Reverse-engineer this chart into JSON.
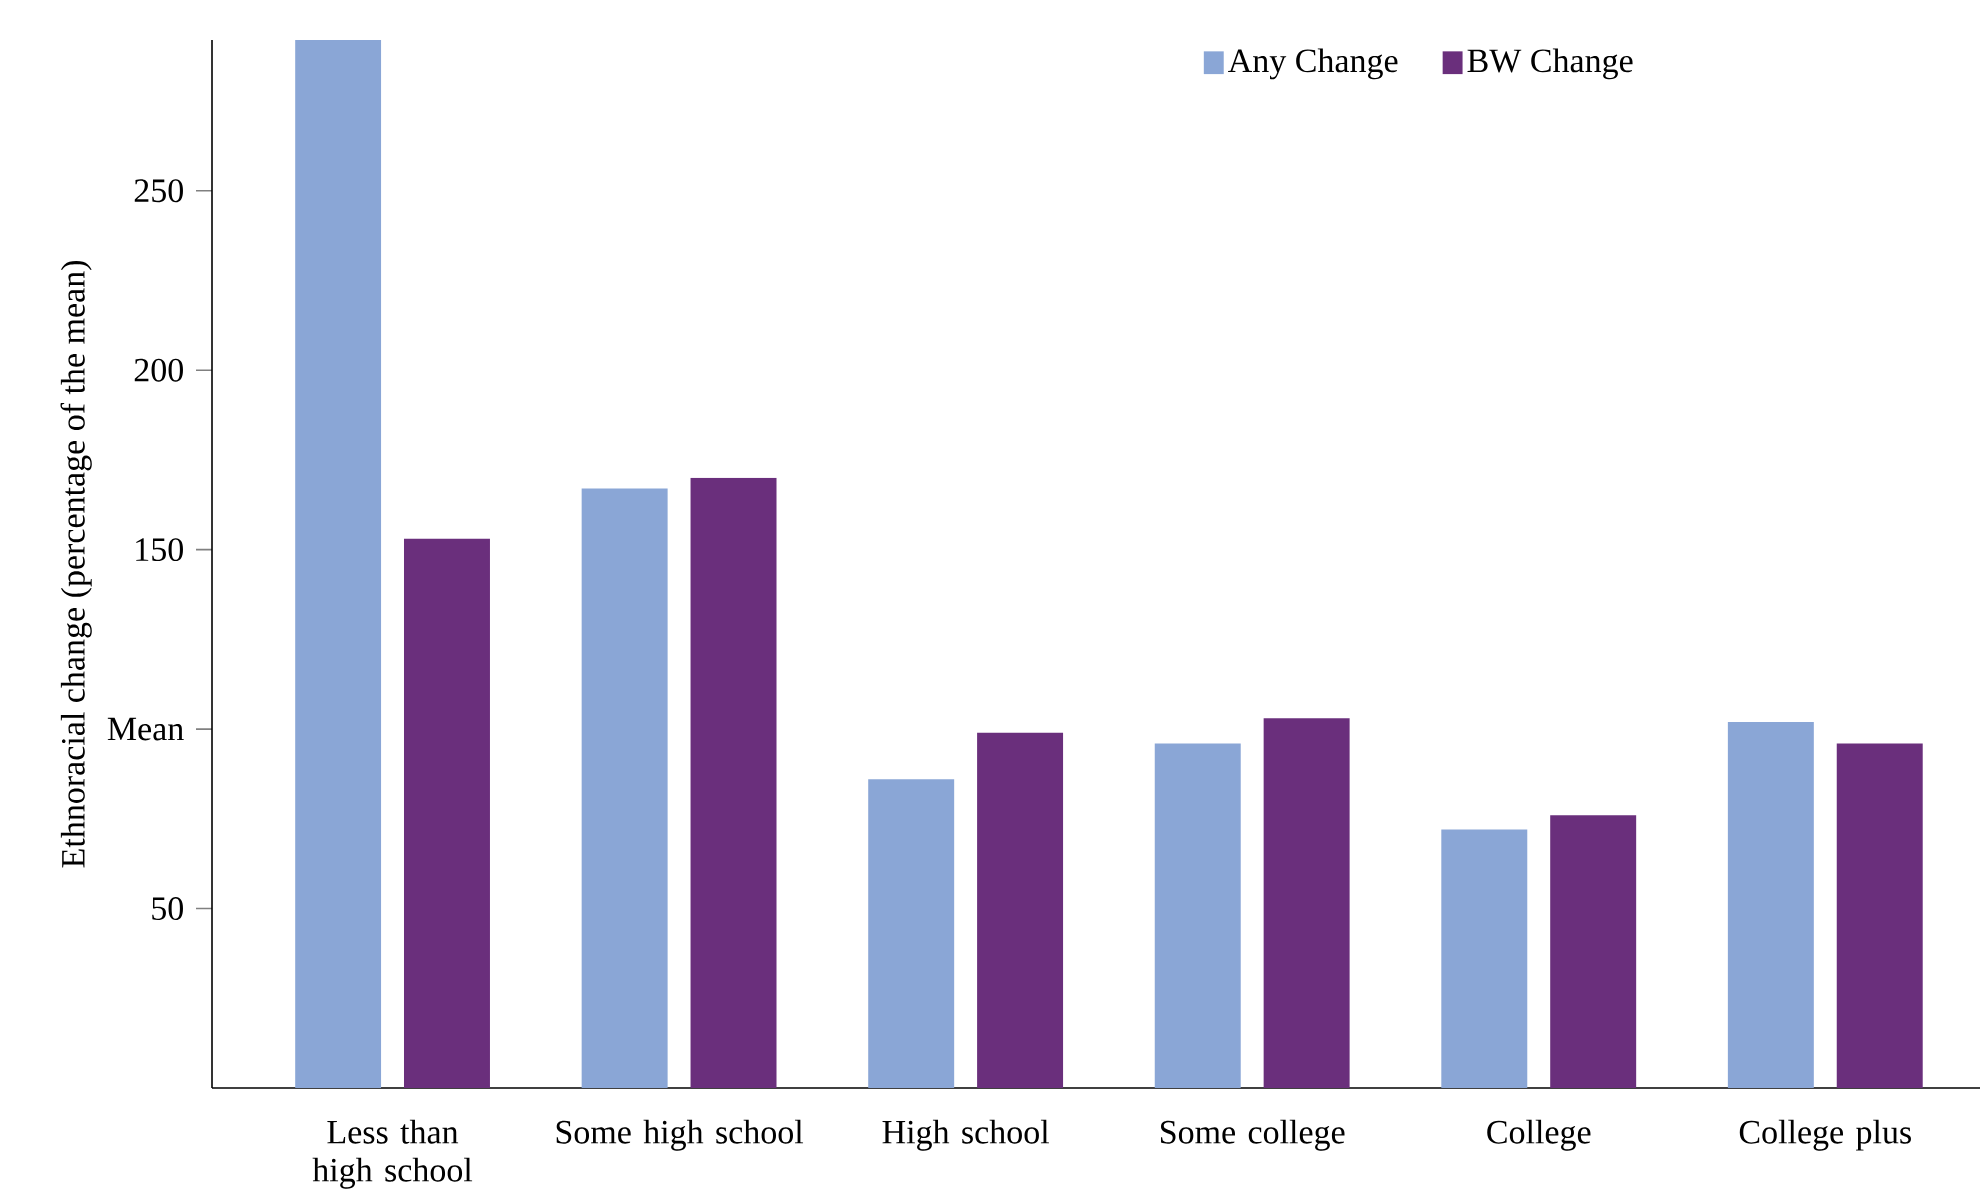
{
  "chart_data": {
    "type": "bar",
    "ylabel": "Ethnoracial change (percentage of the mean)",
    "categories": [
      "Less than high school",
      "Some high school",
      "High school",
      "Some college",
      "College",
      "College plus"
    ],
    "series": [
      {
        "name": "Any Change",
        "color": "#8aa6d6",
        "values": [
          292,
          167,
          86,
          96,
          72,
          102
        ]
      },
      {
        "name": "BW Change",
        "color": "#6a2f7c",
        "values": [
          153,
          170,
          99,
          103,
          76,
          96
        ]
      }
    ],
    "ylim": [
      0,
      292
    ],
    "yticks": [
      50,
      {
        "value": 100,
        "label": "Mean"
      },
      150,
      200,
      250
    ],
    "grid": false,
    "legend": "top right"
  }
}
